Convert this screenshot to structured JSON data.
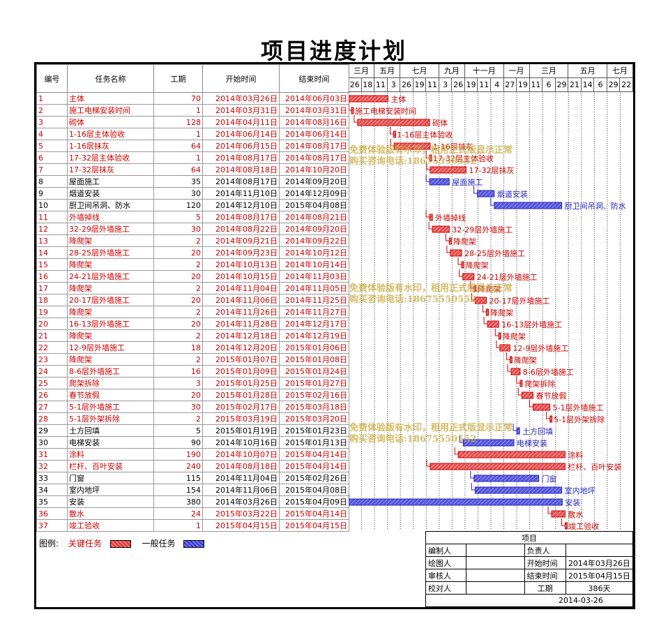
{
  "title": "项目进度计划",
  "columns": {
    "id": "编号",
    "name": "任务名称",
    "duration": "工期",
    "start": "开始时间",
    "end": "结束时间"
  },
  "months": [
    "三月",
    "五月",
    "七月",
    "九月",
    "十一月",
    "一月",
    "三月",
    "五月",
    "七月"
  ],
  "days": [
    "26",
    "18",
    "11",
    "3",
    "26",
    "19",
    "11",
    "3",
    "26",
    "19",
    "11",
    "4",
    "27",
    "19",
    "11",
    "6",
    "29",
    "21",
    "14",
    "6",
    "29",
    "22"
  ],
  "tasks": [
    {
      "id": "1",
      "name": "主体",
      "duration": "70",
      "start": "2014年03月26日",
      "end": "2014年06月03日",
      "critical": true
    },
    {
      "id": "2",
      "name": "施工电梯安装时间",
      "duration": "1",
      "start": "2014年03月31日",
      "end": "2014年03月31日",
      "critical": true
    },
    {
      "id": "3",
      "name": "砌体",
      "duration": "128",
      "start": "2014年04月11日",
      "end": "2014年08月16日",
      "critical": true
    },
    {
      "id": "4",
      "name": "1-16层主体验收",
      "duration": "1",
      "start": "2014年06月14日",
      "end": "2014年06月14日",
      "critical": true
    },
    {
      "id": "5",
      "name": "1-16层抹灰",
      "duration": "64",
      "start": "2014年06月15日",
      "end": "2014年08月17日",
      "critical": true
    },
    {
      "id": "6",
      "name": "17-32层主体验收",
      "duration": "1",
      "start": "2014年08月17日",
      "end": "2014年08月17日",
      "critical": true
    },
    {
      "id": "7",
      "name": "17-32层抹灰",
      "duration": "64",
      "start": "2014年08月18日",
      "end": "2014年10月20日",
      "critical": true
    },
    {
      "id": "8",
      "name": "屋面施工",
      "duration": "35",
      "start": "2014年08月17日",
      "end": "2014年09月20日",
      "critical": false
    },
    {
      "id": "9",
      "name": "烟道安装",
      "duration": "30",
      "start": "2014年11月10日",
      "end": "2014年12月09日",
      "critical": false
    },
    {
      "id": "10",
      "name": "厨卫间吊洞、防水",
      "duration": "120",
      "start": "2014年12月10日",
      "end": "2015年04月08日",
      "critical": false
    },
    {
      "id": "11",
      "name": "外墙掉线",
      "duration": "5",
      "start": "2014年08月17日",
      "end": "2014年08月21日",
      "critical": true
    },
    {
      "id": "12",
      "name": "32-29层外墙施工",
      "duration": "30",
      "start": "2014年08月22日",
      "end": "2014年09月20日",
      "critical": true
    },
    {
      "id": "13",
      "name": "降爬架",
      "duration": "2",
      "start": "2014年09月21日",
      "end": "2014年09月22日",
      "critical": true
    },
    {
      "id": "14",
      "name": "28-25层外墙施工",
      "duration": "20",
      "start": "2014年09月23日",
      "end": "2014年10月12日",
      "critical": true
    },
    {
      "id": "15",
      "name": "降爬架",
      "duration": "2",
      "start": "2014年10月13日",
      "end": "2014年10月14日",
      "critical": true
    },
    {
      "id": "16",
      "name": "24-21层外墙施工",
      "duration": "20",
      "start": "2014年10月15日",
      "end": "2014年11月03日",
      "critical": true
    },
    {
      "id": "17",
      "name": "降爬架",
      "duration": "2",
      "start": "2014年11月04日",
      "end": "2014年11月05日",
      "critical": true
    },
    {
      "id": "18",
      "name": "20-17层外墙施工",
      "duration": "20",
      "start": "2014年11月06日",
      "end": "2014年11月25日",
      "critical": true
    },
    {
      "id": "19",
      "name": "降爬架",
      "duration": "2",
      "start": "2014年11月26日",
      "end": "2014年11月27日",
      "critical": true
    },
    {
      "id": "20",
      "name": "16-13层外墙施工",
      "duration": "20",
      "start": "2014年11月28日",
      "end": "2014年12月17日",
      "critical": true
    },
    {
      "id": "21",
      "name": "降爬架",
      "duration": "2",
      "start": "2014年12月18日",
      "end": "2014年12月19日",
      "critical": true
    },
    {
      "id": "22",
      "name": "12-9层外墙施工",
      "duration": "18",
      "start": "2014年12月20日",
      "end": "2015年01月06日",
      "critical": true
    },
    {
      "id": "23",
      "name": "降爬架",
      "duration": "2",
      "start": "2015年01月07日",
      "end": "2015年01月08日",
      "critical": true
    },
    {
      "id": "24",
      "name": "8-6层外墙施工",
      "duration": "16",
      "start": "2015年01月09日",
      "end": "2015年01月24日",
      "critical": true
    },
    {
      "id": "25",
      "name": "爬架拆除",
      "duration": "3",
      "start": "2015年01月25日",
      "end": "2015年01月27日",
      "critical": true
    },
    {
      "id": "26",
      "name": "春节放假",
      "duration": "20",
      "start": "2015年01月28日",
      "end": "2015年02月16日",
      "critical": true
    },
    {
      "id": "27",
      "name": "5-1层外墙施工",
      "duration": "30",
      "start": "2015年02月17日",
      "end": "2015年03月18日",
      "critical": true
    },
    {
      "id": "28",
      "name": "5-1层外架拆除",
      "duration": "2",
      "start": "2015年03月19日",
      "end": "2015年03月20日",
      "critical": true
    },
    {
      "id": "29",
      "name": "土方回填",
      "duration": "5",
      "start": "2015年01月19日",
      "end": "2015年01月23日",
      "critical": false
    },
    {
      "id": "30",
      "name": "电梯安装",
      "duration": "90",
      "start": "2014年10月16日",
      "end": "2015年01月13日",
      "critical": false
    },
    {
      "id": "31",
      "name": "涂料",
      "duration": "190",
      "start": "2014年10月07日",
      "end": "2015年04月14日",
      "critical": true
    },
    {
      "id": "32",
      "name": "栏杆、百叶安装",
      "duration": "240",
      "start": "2014年08月18日",
      "end": "2015年04月14日",
      "critical": true
    },
    {
      "id": "33",
      "name": "门窗",
      "duration": "115",
      "start": "2014年11月04日",
      "end": "2015年02月26日",
      "critical": false
    },
    {
      "id": "34",
      "name": "室内地坪",
      "duration": "154",
      "start": "2014年11月06日",
      "end": "2015年04月08日",
      "critical": false
    },
    {
      "id": "35",
      "name": "安装",
      "duration": "380",
      "start": "2014年03月26日",
      "end": "2015年04月09日",
      "critical": false
    },
    {
      "id": "36",
      "name": "散水",
      "duration": "24",
      "start": "2015年03月22日",
      "end": "2015年04月14日",
      "critical": true
    },
    {
      "id": "37",
      "name": "竣工验收",
      "duration": "1",
      "start": "2015年04月15日",
      "end": "2015年04月15日",
      "critical": true
    }
  ],
  "legend": {
    "label": "图例:",
    "critical": "关键任务",
    "normal": "一般任务"
  },
  "info": {
    "project_label": "项目",
    "editor": "编制人",
    "owner": "负责人",
    "drawer": "绘图人",
    "start_label": "开始时间",
    "start_value": "2014年03月26日",
    "reviewer": "审核人",
    "end_label": "结束时间",
    "end_value": "2015年04月15日",
    "checker": "校对人",
    "duration_label": "工期",
    "duration_value": "386天",
    "date": "2014-03-26"
  },
  "watermark": [
    "免费体验版有水印，租用正式版显示正常",
    "购买咨询电话:18675550552"
  ],
  "colors": {
    "critical": "#cc0000",
    "critical_bar": "#e84c4c",
    "normal": "#2222bb",
    "normal_bar": "#5555dd"
  }
}
